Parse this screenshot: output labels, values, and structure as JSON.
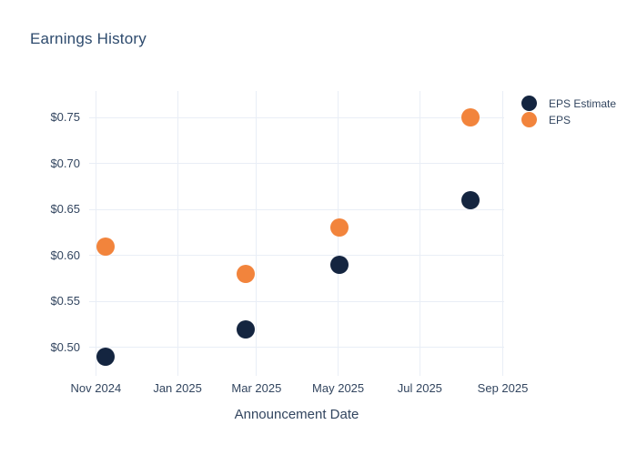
{
  "chart_data": {
    "type": "scatter",
    "title": "Earnings History",
    "xlabel": "Announcement Date",
    "background": "#ffffff",
    "grid_color": "#e9eef6",
    "title_color": "#2d4a6d",
    "tick_label_color": "#32455f",
    "legend_position": "top-right-outside",
    "x_axis": {
      "range": [
        "2024-10-27",
        "2025-09-02"
      ],
      "tick_dates": [
        "2024-11-01",
        "2025-01-01",
        "2025-03-01",
        "2025-05-01",
        "2025-07-01",
        "2025-09-01"
      ],
      "tick_labels": [
        "Nov 2024",
        "Jan 2025",
        "Mar 2025",
        "May 2025",
        "Jul 2025",
        "Sep 2025"
      ]
    },
    "y_axis": {
      "range": [
        0.469,
        0.779
      ],
      "ticks": [
        0.5,
        0.55,
        0.6,
        0.65,
        0.7,
        0.75
      ],
      "tick_labels": [
        "$0.50",
        "$0.55",
        "$0.60",
        "$0.65",
        "$0.70",
        "$0.75"
      ]
    },
    "x_dates_estimated": [
      "2024-11-08",
      "2025-02-21",
      "2025-05-02",
      "2025-08-08"
    ],
    "series": [
      {
        "name": "EPS Estimate",
        "color": "#142540",
        "marker": "circle",
        "values": [
          0.49,
          0.52,
          0.59,
          0.66
        ]
      },
      {
        "name": "EPS",
        "color": "#f2843c",
        "marker": "circle",
        "values": [
          0.61,
          0.58,
          0.63,
          0.75
        ]
      }
    ]
  }
}
